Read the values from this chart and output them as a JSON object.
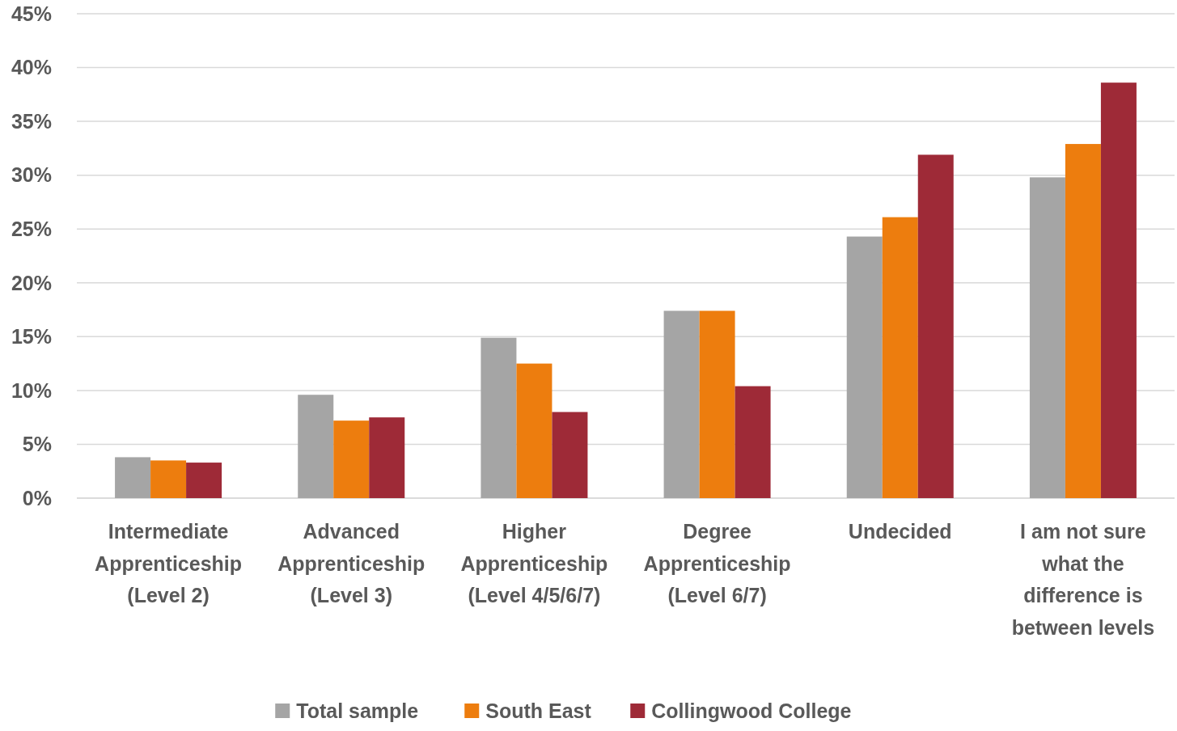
{
  "chart_data": {
    "type": "bar",
    "categories": [
      "Intermediate Apprenticeship (Level 2)",
      "Advanced Apprenticeship (Level 3)",
      "Higher Apprenticeship (Level 4/5/6/7)",
      "Degree Apprenticeship (Level 6/7)",
      "Undecided",
      "I am not sure what the difference is between levels"
    ],
    "series": [
      {
        "name": "Total sample",
        "color": "#a5a5a5",
        "values": [
          3.8,
          9.6,
          14.9,
          17.4,
          24.3,
          29.8
        ]
      },
      {
        "name": "South East",
        "color": "#ed7d0e",
        "values": [
          3.5,
          7.2,
          12.5,
          17.4,
          26.1,
          32.9
        ]
      },
      {
        "name": "Collingwood College",
        "color": "#9e2a37",
        "values": [
          3.3,
          7.5,
          8.0,
          10.4,
          31.9,
          38.6
        ]
      }
    ],
    "ylim": [
      0,
      45
    ],
    "yticks": [
      {
        "value": 0,
        "label": "0%"
      },
      {
        "value": 5,
        "label": "5%"
      },
      {
        "value": 10,
        "label": "10%"
      },
      {
        "value": 15,
        "label": "15%"
      },
      {
        "value": 20,
        "label": "20%"
      },
      {
        "value": 25,
        "label": "25%"
      },
      {
        "value": 30,
        "label": "30%"
      },
      {
        "value": 35,
        "label": "35%"
      },
      {
        "value": 40,
        "label": "40%"
      },
      {
        "value": 45,
        "label": "45%"
      }
    ],
    "grid": "y",
    "legend": "bottom"
  }
}
